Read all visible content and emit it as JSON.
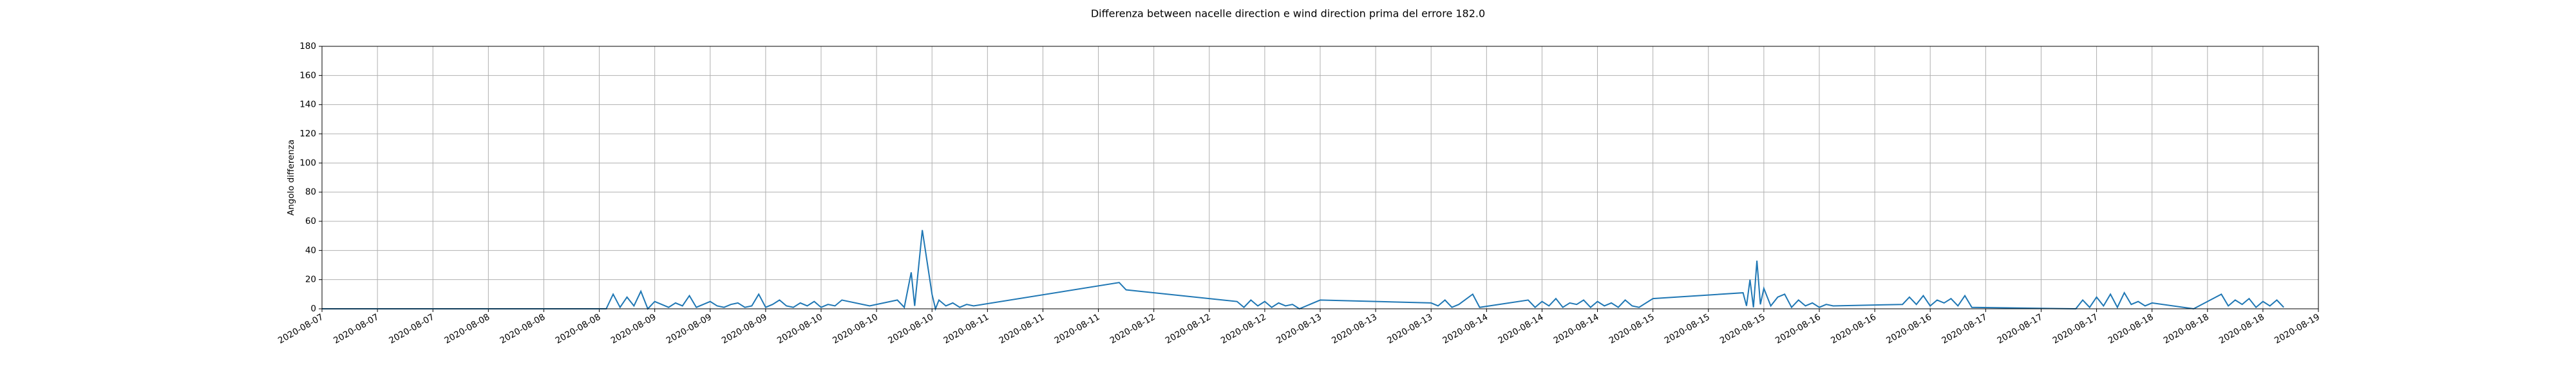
{
  "chart_data": {
    "type": "line",
    "title": "Differenza between nacelle direction e wind direction prima del errore 182.0",
    "y_label": "Angolo differenza",
    "xlim": [
      0,
      288
    ],
    "xticks": [
      {
        "value": 0,
        "label": "2020-08-07"
      },
      {
        "value": 8,
        "label": "2020-08-07"
      },
      {
        "value": 16,
        "label": "2020-08-07"
      },
      {
        "value": 24,
        "label": "2020-08-08"
      },
      {
        "value": 32,
        "label": "2020-08-08"
      },
      {
        "value": 40,
        "label": "2020-08-08"
      },
      {
        "value": 48,
        "label": "2020-08-09"
      },
      {
        "value": 56,
        "label": "2020-08-09"
      },
      {
        "value": 64,
        "label": "2020-08-09"
      },
      {
        "value": 72,
        "label": "2020-08-10"
      },
      {
        "value": 80,
        "label": "2020-08-10"
      },
      {
        "value": 88,
        "label": "2020-08-10"
      },
      {
        "value": 96,
        "label": "2020-08-11"
      },
      {
        "value": 104,
        "label": "2020-08-11"
      },
      {
        "value": 112,
        "label": "2020-08-11"
      },
      {
        "value": 120,
        "label": "2020-08-12"
      },
      {
        "value": 128,
        "label": "2020-08-12"
      },
      {
        "value": 136,
        "label": "2020-08-12"
      },
      {
        "value": 144,
        "label": "2020-08-13"
      },
      {
        "value": 152,
        "label": "2020-08-13"
      },
      {
        "value": 160,
        "label": "2020-08-13"
      },
      {
        "value": 168,
        "label": "2020-08-14"
      },
      {
        "value": 176,
        "label": "2020-08-14"
      },
      {
        "value": 184,
        "label": "2020-08-14"
      },
      {
        "value": 192,
        "label": "2020-08-15"
      },
      {
        "value": 200,
        "label": "2020-08-15"
      },
      {
        "value": 208,
        "label": "2020-08-15"
      },
      {
        "value": 216,
        "label": "2020-08-16"
      },
      {
        "value": 224,
        "label": "2020-08-16"
      },
      {
        "value": 232,
        "label": "2020-08-16"
      },
      {
        "value": 240,
        "label": "2020-08-17"
      },
      {
        "value": 248,
        "label": "2020-08-17"
      },
      {
        "value": 256,
        "label": "2020-08-17"
      },
      {
        "value": 264,
        "label": "2020-08-18"
      },
      {
        "value": 272,
        "label": "2020-08-18"
      },
      {
        "value": 280,
        "label": "2020-08-18"
      },
      {
        "value": 288,
        "label": "2020-08-19"
      }
    ],
    "ylim": [
      0,
      180
    ],
    "yticks": [
      0,
      20,
      40,
      60,
      80,
      100,
      120,
      140,
      160,
      180
    ],
    "grid": true,
    "color": "#1f77b4",
    "x": [
      0,
      41,
      42,
      43,
      44,
      45,
      46,
      47,
      48,
      49,
      50,
      51,
      52,
      53,
      54,
      55,
      56,
      57,
      58,
      59,
      60,
      61,
      62,
      63,
      64,
      65,
      66,
      67,
      68,
      69,
      70,
      71,
      72,
      73,
      74,
      75,
      79,
      83,
      84,
      85,
      85.5,
      86.6,
      88,
      88.5,
      89,
      90,
      91,
      92,
      93,
      94,
      115,
      116,
      132,
      133,
      134,
      135,
      136,
      137,
      138,
      139,
      140,
      141,
      144,
      160,
      161,
      162,
      163,
      164,
      166,
      167,
      174,
      175,
      176,
      177,
      178,
      179,
      180,
      181,
      182,
      183,
      184,
      185,
      186,
      187,
      188,
      189,
      190,
      192,
      205,
      205.5,
      206,
      206.5,
      207,
      207.5,
      208,
      209,
      210,
      211,
      212,
      213,
      214,
      215,
      216,
      217,
      218,
      228,
      229,
      230,
      231,
      232,
      233,
      234,
      235,
      236,
      237,
      238,
      253,
      254,
      255,
      256,
      257,
      258,
      259,
      260,
      261,
      262,
      263,
      264,
      270,
      274,
      275,
      276,
      277,
      278,
      279,
      280,
      281,
      282,
      283
    ],
    "values": [
      0,
      0,
      10,
      1,
      8,
      2,
      12,
      0,
      5,
      3,
      1,
      4,
      2,
      9,
      1,
      3,
      5,
      2,
      1,
      3,
      4,
      1,
      2,
      10,
      1,
      3,
      6,
      2,
      1,
      4,
      2,
      5,
      1,
      3,
      2,
      6,
      2,
      6,
      1,
      25,
      2,
      54,
      10,
      0,
      6,
      2,
      4,
      1,
      3,
      2,
      18,
      13,
      5,
      1,
      6,
      2,
      5,
      1,
      4,
      2,
      3,
      0,
      6,
      4,
      2,
      6,
      1,
      3,
      10,
      1,
      6,
      1,
      5,
      2,
      7,
      1,
      4,
      3,
      6,
      1,
      5,
      2,
      4,
      1,
      6,
      2,
      1,
      7,
      11,
      2,
      20,
      1,
      33,
      3,
      14,
      2,
      8,
      10,
      1,
      6,
      2,
      4,
      1,
      3,
      2,
      3,
      8,
      3,
      9,
      2,
      6,
      4,
      7,
      2,
      9,
      1,
      0,
      6,
      1,
      8,
      2,
      10,
      1,
      11,
      3,
      5,
      2,
      4,
      0,
      10,
      2,
      6,
      3,
      7,
      1,
      5,
      2,
      6,
      1
    ]
  }
}
